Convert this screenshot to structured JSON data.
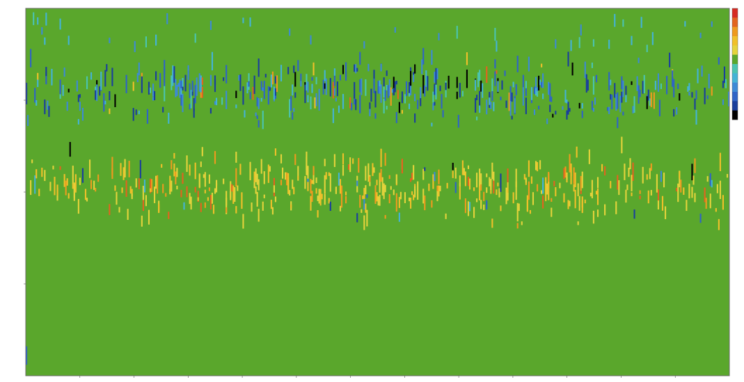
{
  "chart_data": {
    "type": "heatmap",
    "title": "",
    "xlabel": "",
    "ylabel": "",
    "background_color": "#5aa72c",
    "grid": false,
    "legend": "right",
    "colormap": [
      "#000000",
      "#1a3f9c",
      "#2f64c6",
      "#3d8ad6",
      "#44b3d6",
      "#4bc4b0",
      "#5aa72c",
      "#e4d33c",
      "#f0c02a",
      "#ee9a1f",
      "#e2641f",
      "#d62a22"
    ],
    "x_range": [
      0,
      1000
    ],
    "y_range": [
      0,
      100
    ],
    "rows": 200,
    "columns": 500,
    "bands": [
      {
        "name": "upper",
        "y_center": 76,
        "y_spread": 9,
        "values": "negative"
      },
      {
        "name": "lower",
        "y_center": 50,
        "y_spread": 10,
        "values": "positive"
      }
    ],
    "x_ticks": [],
    "y_ticks": []
  }
}
